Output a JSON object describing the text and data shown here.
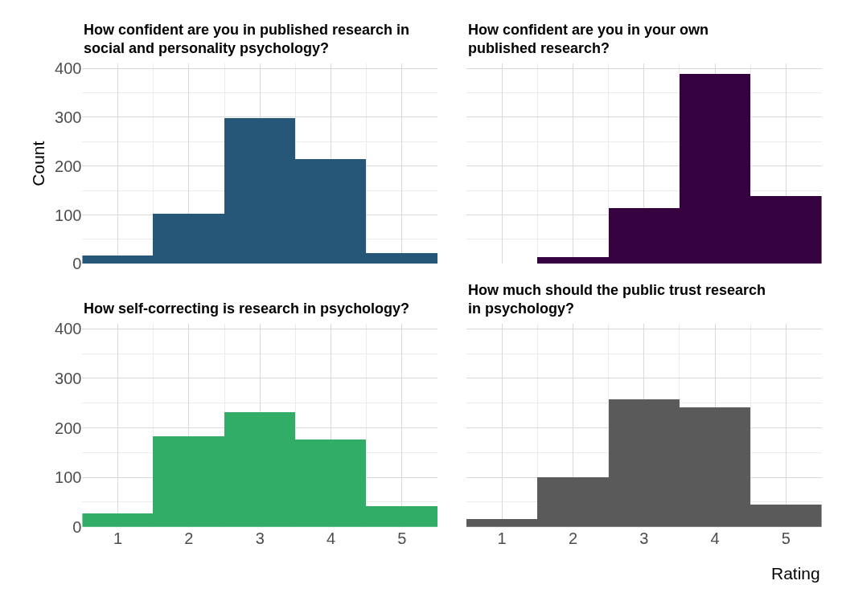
{
  "chart_data": [
    {
      "type": "histogram",
      "title": "How confident are you in published research in\nsocial and personality psychology?",
      "ylabel": "Count",
      "bins": [
        0.5,
        1.5,
        2.5,
        3.5,
        4.5,
        5.5
      ],
      "values": [
        17,
        103,
        298,
        214,
        22
      ],
      "color": "#275778",
      "xlim": [
        0.5,
        5.5
      ],
      "xticks": [
        1,
        2,
        3,
        4,
        5
      ],
      "ylim": [
        0,
        410
      ],
      "yticks": [
        0,
        100,
        200,
        300,
        400
      ],
      "grid": true,
      "tick_labels": "y"
    },
    {
      "type": "histogram",
      "title": "How confident are you in your own\npublished research?",
      "bins": [
        0.5,
        1.5,
        2.5,
        3.5,
        4.5,
        5.5
      ],
      "values": [
        0,
        14,
        114,
        388,
        139
      ],
      "color": "#36013f",
      "xlim": [
        0.5,
        5.5
      ],
      "xticks": [
        1,
        2,
        3,
        4,
        5
      ],
      "ylim": [
        0,
        410
      ],
      "yticks": [
        0,
        100,
        200,
        300,
        400
      ],
      "grid": true,
      "tick_labels": false
    },
    {
      "type": "histogram",
      "title": "How self-correcting is research in psychology?",
      "bins": [
        0.5,
        1.5,
        2.5,
        3.5,
        4.5,
        5.5
      ],
      "values": [
        27,
        183,
        231,
        177,
        41
      ],
      "color": "#31ad67",
      "xlim": [
        0.5,
        5.5
      ],
      "xticks": [
        1,
        2,
        3,
        4,
        5
      ],
      "ylim": [
        0,
        410
      ],
      "yticks": [
        0,
        100,
        200,
        300,
        400
      ],
      "grid": true
    },
    {
      "type": "histogram",
      "title": "How much should the public trust research\nin psychology?",
      "xlabel": "Rating",
      "bins": [
        0.5,
        1.5,
        2.5,
        3.5,
        4.5,
        5.5
      ],
      "values": [
        16,
        100,
        258,
        241,
        45
      ],
      "color": "#5a5a5a",
      "xlim": [
        0.5,
        5.5
      ],
      "xticks": [
        1,
        2,
        3,
        4,
        5
      ],
      "ylim": [
        0,
        410
      ],
      "yticks": [
        0,
        100,
        200,
        300,
        400
      ],
      "grid": true,
      "tick_labels": "x"
    }
  ]
}
